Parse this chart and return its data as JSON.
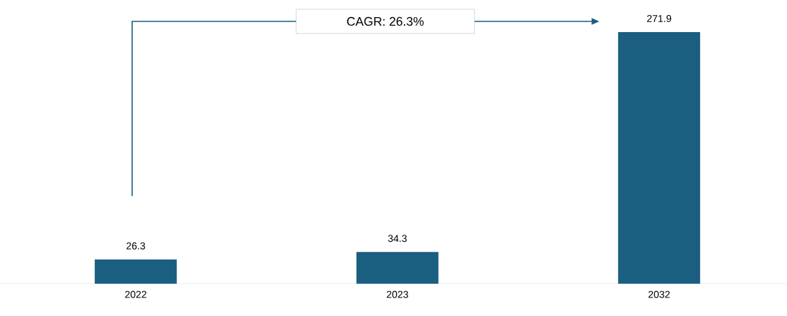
{
  "chart_data": {
    "type": "bar",
    "categories": [
      "2022",
      "2023",
      "2032"
    ],
    "values": [
      26.3,
      34.3,
      271.9
    ],
    "color": "#1a5e80",
    "data_labels": true,
    "annotations": [
      "CAGR: 26.3%"
    ]
  }
}
